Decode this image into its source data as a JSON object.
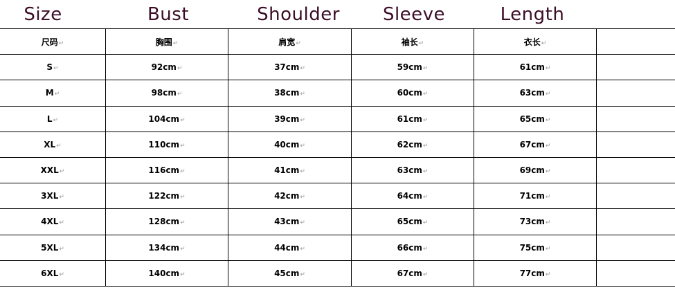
{
  "headers_en": [
    "Size",
    "Bust",
    "Shoulder",
    "Sleeve",
    "Length"
  ],
  "header_color": "#3b0d26",
  "table": {
    "columns": [
      "尺码",
      "胸围",
      "肩宽",
      "袖长",
      "衣长"
    ],
    "rows": [
      [
        "S",
        "92cm",
        "37cm",
        "59cm",
        "61cm"
      ],
      [
        "M",
        "98cm",
        "38cm",
        "60cm",
        "63cm"
      ],
      [
        "L",
        "104cm",
        "39cm",
        "61cm",
        "65cm"
      ],
      [
        "XL",
        "110cm",
        "40cm",
        "62cm",
        "67cm"
      ],
      [
        "XXL",
        "116cm",
        "41cm",
        "63cm",
        "69cm"
      ],
      [
        "3XL",
        "122cm",
        "42cm",
        "64cm",
        "71cm"
      ],
      [
        "4XL",
        "128cm",
        "43cm",
        "65cm",
        "73cm"
      ],
      [
        "5XL",
        "134cm",
        "44cm",
        "66cm",
        "75cm"
      ],
      [
        "6XL",
        "140cm",
        "45cm",
        "67cm",
        "77cm"
      ]
    ]
  }
}
